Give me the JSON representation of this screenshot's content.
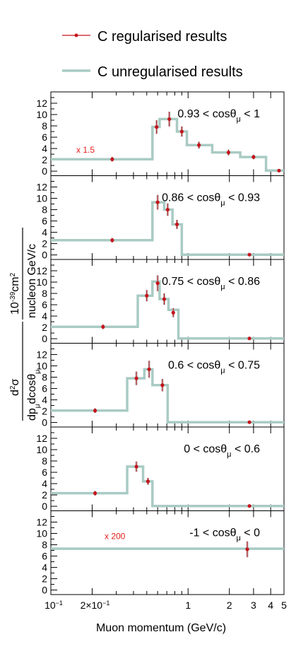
{
  "legend": {
    "regularised": "C regularised results",
    "unregularised": "C unregularised results"
  },
  "colors": {
    "regularised": "#c4141c",
    "unregularised": "#a9cbc4",
    "error_band": "#b5b5b5"
  },
  "chart_data": {
    "type": "histogram-panels",
    "x_scale": "log",
    "xlim": [
      0.1,
      5
    ],
    "xlabel": "Muon momentum (GeV/c)",
    "x_ticks": [
      {
        "value": 0.1,
        "label": "10",
        "sup": "−1"
      },
      {
        "value": 0.2,
        "label": "2×10",
        "sup": "−1"
      },
      {
        "value": 1,
        "label": "1",
        "sup": ""
      },
      {
        "value": 2,
        "label": "2",
        "sup": ""
      },
      {
        "value": 3,
        "label": "3",
        "sup": ""
      },
      {
        "value": 4,
        "label": "4",
        "sup": ""
      },
      {
        "value": 5,
        "label": "5",
        "sup": ""
      }
    ],
    "ylabel_lines": [
      "d²σ/dp_μ dcosθ_μ",
      "10⁻³⁹cm² / nucleon GeV/c"
    ],
    "ylim": [
      -0.8,
      14
    ],
    "y_ticks": [
      0,
      2,
      4,
      6,
      8,
      10,
      12
    ],
    "panels": [
      {
        "label": "0.93 < cosθ_μ < 1",
        "label_parts": [
          "0.93 < cosθ",
          "μ",
          " < 1"
        ],
        "scale": "x 1.5",
        "bins": [
          {
            "lo": 0.1,
            "hi": 0.55,
            "unreg": 2.1,
            "reg": 2.1,
            "err": 0.4,
            "x": 0.28
          },
          {
            "lo": 0.55,
            "hi": 0.62,
            "unreg": 7.8,
            "reg": 7.8,
            "err": 1.2,
            "x": 0.59
          },
          {
            "lo": 0.62,
            "hi": 0.83,
            "unreg": 9.2,
            "reg": 9.2,
            "err": 1.3,
            "x": 0.73
          },
          {
            "lo": 0.83,
            "hi": 0.98,
            "unreg": 7.0,
            "reg": 7.0,
            "err": 0.9,
            "x": 0.9
          },
          {
            "lo": 0.98,
            "hi": 1.5,
            "unreg": 4.6,
            "reg": 4.6,
            "err": 0.6,
            "x": 1.2
          },
          {
            "lo": 1.5,
            "hi": 2.4,
            "unreg": 3.3,
            "reg": 3.3,
            "err": 0.5,
            "x": 1.97
          },
          {
            "lo": 2.4,
            "hi": 3.7,
            "unreg": 2.5,
            "reg": 2.5,
            "err": 0.4,
            "x": 3.0
          },
          {
            "lo": 3.7,
            "hi": 5.0,
            "unreg": 0.1,
            "reg": 0.1,
            "err": 0.05,
            "x": 4.6
          }
        ]
      },
      {
        "label": "0.86 < cosθ_μ < 0.93",
        "label_parts": [
          "0.86 < cosθ",
          "μ",
          " < 0.93"
        ],
        "scale": "",
        "bins": [
          {
            "lo": 0.1,
            "hi": 0.55,
            "unreg": 2.6,
            "reg": 2.6,
            "err": 0.4,
            "x": 0.28
          },
          {
            "lo": 0.55,
            "hi": 0.67,
            "unreg": 9.3,
            "reg": 9.3,
            "err": 1.3,
            "x": 0.6
          },
          {
            "lo": 0.67,
            "hi": 0.77,
            "unreg": 8.0,
            "reg": 8.0,
            "err": 1.1,
            "x": 0.71
          },
          {
            "lo": 0.77,
            "hi": 0.9,
            "unreg": 5.4,
            "reg": 5.4,
            "err": 0.8,
            "x": 0.83
          },
          {
            "lo": 0.9,
            "hi": 5.0,
            "unreg": 0.05,
            "reg": 0.05,
            "err": 0.05,
            "x": 2.8
          }
        ]
      },
      {
        "label": "0.75 < cosθ_μ < 0.86",
        "label_parts": [
          "0.75 <  cosθ",
          "μ",
          " < 0.86"
        ],
        "scale": "",
        "bins": [
          {
            "lo": 0.1,
            "hi": 0.43,
            "unreg": 2.1,
            "reg": 2.1,
            "err": 0.4,
            "x": 0.24
          },
          {
            "lo": 0.43,
            "hi": 0.55,
            "unreg": 7.6,
            "reg": 7.6,
            "err": 1.0,
            "x": 0.5
          },
          {
            "lo": 0.55,
            "hi": 0.62,
            "unreg": 10.1,
            "reg": 9.8,
            "err": 1.4,
            "x": 0.6
          },
          {
            "lo": 0.62,
            "hi": 0.72,
            "unreg": 7.0,
            "reg": 7.0,
            "err": 1.0,
            "x": 0.67
          },
          {
            "lo": 0.72,
            "hi": 0.85,
            "unreg": 5.1,
            "reg": 4.6,
            "err": 0.8,
            "x": 0.78
          },
          {
            "lo": 0.85,
            "hi": 5.0,
            "unreg": 0.05,
            "reg": 0.05,
            "err": 0.05,
            "x": 2.8
          }
        ]
      },
      {
        "label": "0.6 < cosθ_μ < 0.75",
        "label_parts": [
          "0.6 < cosθ",
          "μ",
          " < 0.75"
        ],
        "scale": "",
        "bins": [
          {
            "lo": 0.1,
            "hi": 0.36,
            "unreg": 2.1,
            "reg": 2.1,
            "err": 0.4,
            "x": 0.21
          },
          {
            "lo": 0.36,
            "hi": 0.48,
            "unreg": 7.8,
            "reg": 7.8,
            "err": 1.2,
            "x": 0.42
          },
          {
            "lo": 0.48,
            "hi": 0.55,
            "unreg": 9.4,
            "reg": 9.4,
            "err": 1.5,
            "x": 0.52
          },
          {
            "lo": 0.55,
            "hi": 0.71,
            "unreg": 6.6,
            "reg": 6.6,
            "err": 1.1,
            "x": 0.65
          },
          {
            "lo": 0.71,
            "hi": 5.0,
            "unreg": 0.05,
            "reg": 0.05,
            "err": 0.05,
            "x": 2.8
          }
        ]
      },
      {
        "label": "0 < cosθ_μ < 0.6",
        "label_parts": [
          "0 < cosθ",
          "μ",
          " < 0.6"
        ],
        "scale": "",
        "bins": [
          {
            "lo": 0.1,
            "hi": 0.36,
            "unreg": 2.3,
            "reg": 2.3,
            "err": 0.4,
            "x": 0.21
          },
          {
            "lo": 0.36,
            "hi": 0.47,
            "unreg": 7.0,
            "reg": 7.0,
            "err": 0.9,
            "x": 0.42
          },
          {
            "lo": 0.47,
            "hi": 0.55,
            "unreg": 4.4,
            "reg": 4.4,
            "err": 0.6,
            "x": 0.51
          },
          {
            "lo": 0.55,
            "hi": 5.0,
            "unreg": 0.05,
            "reg": 0.05,
            "err": 0.05,
            "x": 2.8
          }
        ]
      },
      {
        "label": "-1 < cosθ_μ < 0",
        "label_parts": [
          "-1 < cosθ",
          "μ",
          " < 0"
        ],
        "scale": "x 200",
        "bins": [
          {
            "lo": 0.1,
            "hi": 5.0,
            "unreg": 7.3,
            "reg": 7.2,
            "err": 1.4,
            "x": 2.7
          }
        ]
      }
    ]
  }
}
